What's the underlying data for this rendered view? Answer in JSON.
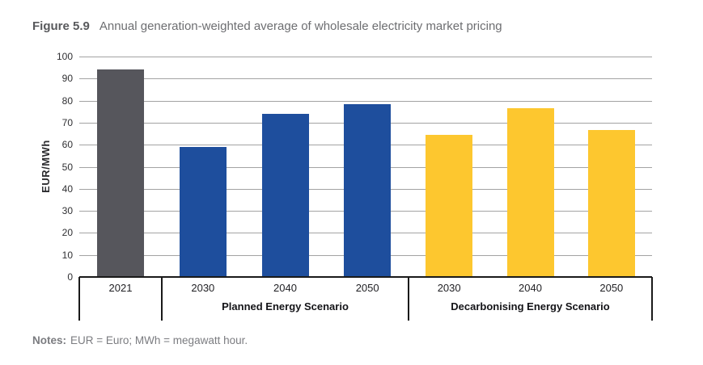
{
  "header": {
    "figure_label": "Figure 5.9",
    "figure_title": "Annual generation-weighted average of wholesale electricity market pricing"
  },
  "notes": {
    "label": "Notes:",
    "text": "EUR = Euro; MWh = megawatt hour."
  },
  "chart_data": {
    "type": "bar",
    "title": "Annual generation-weighted average of wholesale electricity market pricing",
    "xlabel": "",
    "ylabel": "EUR/MWh",
    "ylim": [
      0,
      100
    ],
    "ytick_step": 10,
    "grid": true,
    "legend": "none",
    "gridline_color": "#a3a3a3",
    "axis_color": "#1a1a1a",
    "groups": [
      {
        "label": "",
        "color": "#56565c",
        "bars": [
          {
            "category": "2021",
            "value": 94
          }
        ]
      },
      {
        "label": "Planned Energy Scenario",
        "color": "#1e4e9d",
        "bars": [
          {
            "category": "2030",
            "value": 59
          },
          {
            "category": "2040",
            "value": 74
          },
          {
            "category": "2050",
            "value": 78.5
          }
        ]
      },
      {
        "label": "Decarbonising Energy Scenario",
        "color": "#fdc72f",
        "bars": [
          {
            "category": "2030",
            "value": 64.5
          },
          {
            "category": "2040",
            "value": 76.5
          },
          {
            "category": "2050",
            "value": 66.5
          }
        ]
      }
    ]
  }
}
